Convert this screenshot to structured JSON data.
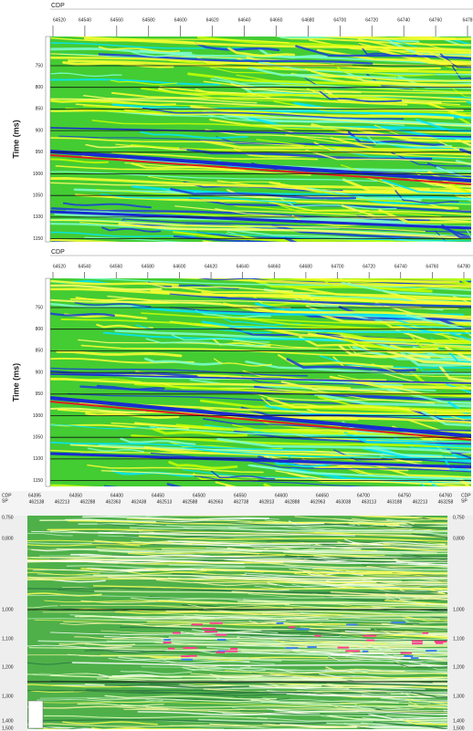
{
  "panels": [
    {
      "header": "CDP",
      "x_ticks": [
        "64520",
        "64540",
        "64560",
        "64580",
        "64600",
        "64620",
        "64640",
        "64660",
        "64680",
        "64700",
        "64720",
        "64740",
        "64760",
        "6478"
      ],
      "y_label": "Time (ms)",
      "y_ticks": [
        "750",
        "800",
        "850",
        "900",
        "950",
        "1000",
        "1050",
        "1100",
        "1150"
      ]
    },
    {
      "header": "CDP",
      "x_ticks": [
        "64520",
        "64540",
        "64560",
        "64580",
        "64600",
        "64620",
        "64640",
        "64660",
        "64680",
        "64700",
        "64720",
        "64740",
        "64760",
        "64780"
      ],
      "y_label": "Time (ms)",
      "y_ticks": [
        "750",
        "800",
        "850",
        "900",
        "950",
        "1000",
        "1050",
        "1100",
        "1150"
      ]
    },
    {
      "header_cdp": "CDP",
      "header_sp": "SP",
      "right_cdp": "CDP",
      "right_sp": "SP",
      "x_ticks_cdp": [
        "64395",
        "64350",
        "64400",
        "64450",
        "64500",
        "64550",
        "64600",
        "64650",
        "64700",
        "64750",
        "64760"
      ],
      "x_ticks_sp": [
        "462138",
        "462213",
        "462288",
        "462363",
        "462438",
        "462513",
        "462588",
        "462663",
        "462738",
        "462813",
        "462888",
        "462963",
        "463038",
        "463113",
        "463188",
        "462213",
        "463258"
      ],
      "y_ticks": [
        "0,750",
        "0,800",
        "1,000",
        "1,100",
        "1,200",
        "1,300",
        "1,400",
        "1,500"
      ]
    }
  ]
}
